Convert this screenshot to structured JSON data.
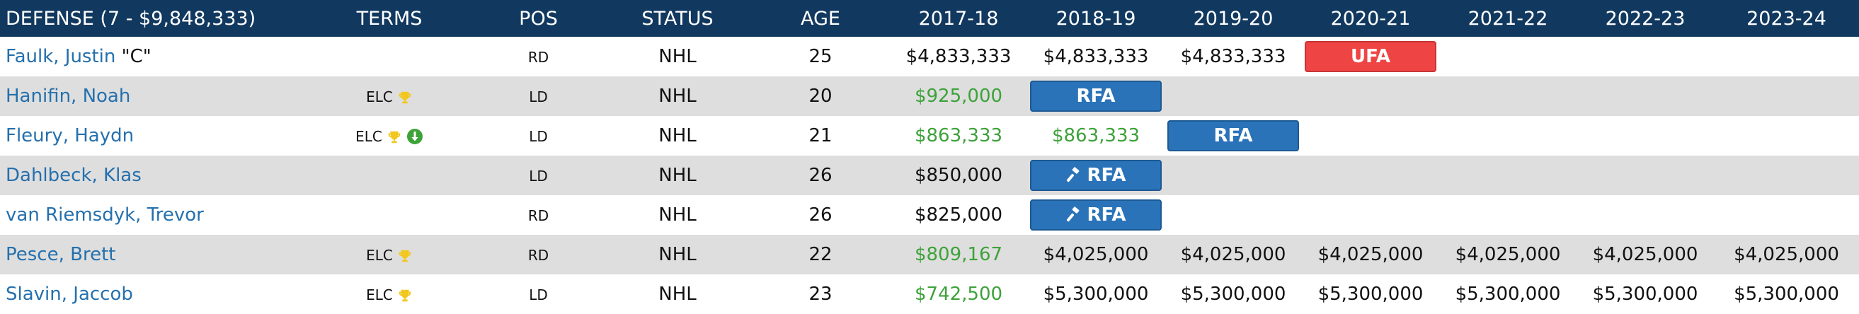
{
  "header": {
    "name": "DEFENSE (7 - $9,848,333)",
    "terms": "TERMS",
    "pos": "POS",
    "status": "STATUS",
    "age": "AGE",
    "seasons": [
      "2017-18",
      "2018-19",
      "2019-20",
      "2020-21",
      "2021-22",
      "2022-23",
      "2023-24"
    ]
  },
  "colors": {
    "header_bg": "#11385f",
    "link": "#2570ad",
    "green": "#3da23a",
    "rfa": "#2a73b9",
    "ufa": "#ef4444",
    "stripe": "#dedede"
  },
  "players": [
    {
      "name": "Faulk, Justin",
      "captain": "\"C\"",
      "elc": "",
      "pos": "RD",
      "status": "NHL",
      "age": "25",
      "cells": [
        {
          "text": "$4,833,333"
        },
        {
          "text": "$4,833,333"
        },
        {
          "text": "$4,833,333"
        },
        {
          "badge": "ufa",
          "text": "UFA"
        },
        {},
        {},
        {}
      ]
    },
    {
      "name": "Hanifin, Noah",
      "captain": "",
      "elc": "ELC",
      "trophy": "trophy-icon",
      "pos": "LD",
      "status": "NHL",
      "age": "20",
      "cells": [
        {
          "text": "$925,000",
          "green": true
        },
        {
          "badge": "rfa",
          "text": "RFA"
        },
        {},
        {},
        {},
        {},
        {}
      ]
    },
    {
      "name": "Fleury, Haydn",
      "captain": "",
      "elc": "ELC",
      "trophy": "trophy-icon",
      "down": "down-arrow-icon",
      "pos": "LD",
      "status": "NHL",
      "age": "21",
      "cells": [
        {
          "text": "$863,333",
          "green": true
        },
        {
          "text": "$863,333",
          "green": true
        },
        {
          "badge": "rfa",
          "text": "RFA"
        },
        {},
        {},
        {},
        {}
      ]
    },
    {
      "name": "Dahlbeck, Klas",
      "captain": "",
      "elc": "",
      "pos": "LD",
      "status": "NHL",
      "age": "26",
      "cells": [
        {
          "text": "$850,000"
        },
        {
          "badge": "rfa",
          "text": "RFA",
          "icon": "gavel-icon"
        },
        {},
        {},
        {},
        {},
        {}
      ]
    },
    {
      "name": "van Riemsdyk, Trevor",
      "captain": "",
      "elc": "",
      "pos": "RD",
      "status": "NHL",
      "age": "26",
      "cells": [
        {
          "text": "$825,000"
        },
        {
          "badge": "rfa",
          "text": "RFA",
          "icon": "gavel-icon"
        },
        {},
        {},
        {},
        {},
        {}
      ]
    },
    {
      "name": "Pesce, Brett",
      "captain": "",
      "elc": "ELC",
      "trophy": "trophy-icon",
      "pos": "RD",
      "status": "NHL",
      "age": "22",
      "cells": [
        {
          "text": "$809,167",
          "green": true
        },
        {
          "text": "$4,025,000"
        },
        {
          "text": "$4,025,000"
        },
        {
          "text": "$4,025,000"
        },
        {
          "text": "$4,025,000"
        },
        {
          "text": "$4,025,000"
        },
        {
          "text": "$4,025,000"
        }
      ]
    },
    {
      "name": "Slavin, Jaccob",
      "captain": "",
      "elc": "ELC",
      "trophy": "trophy-icon",
      "pos": "LD",
      "status": "NHL",
      "age": "23",
      "cells": [
        {
          "text": "$742,500",
          "green": true
        },
        {
          "text": "$5,300,000"
        },
        {
          "text": "$5,300,000"
        },
        {
          "text": "$5,300,000"
        },
        {
          "text": "$5,300,000"
        },
        {
          "text": "$5,300,000"
        },
        {
          "text": "$5,300,000"
        }
      ]
    }
  ]
}
